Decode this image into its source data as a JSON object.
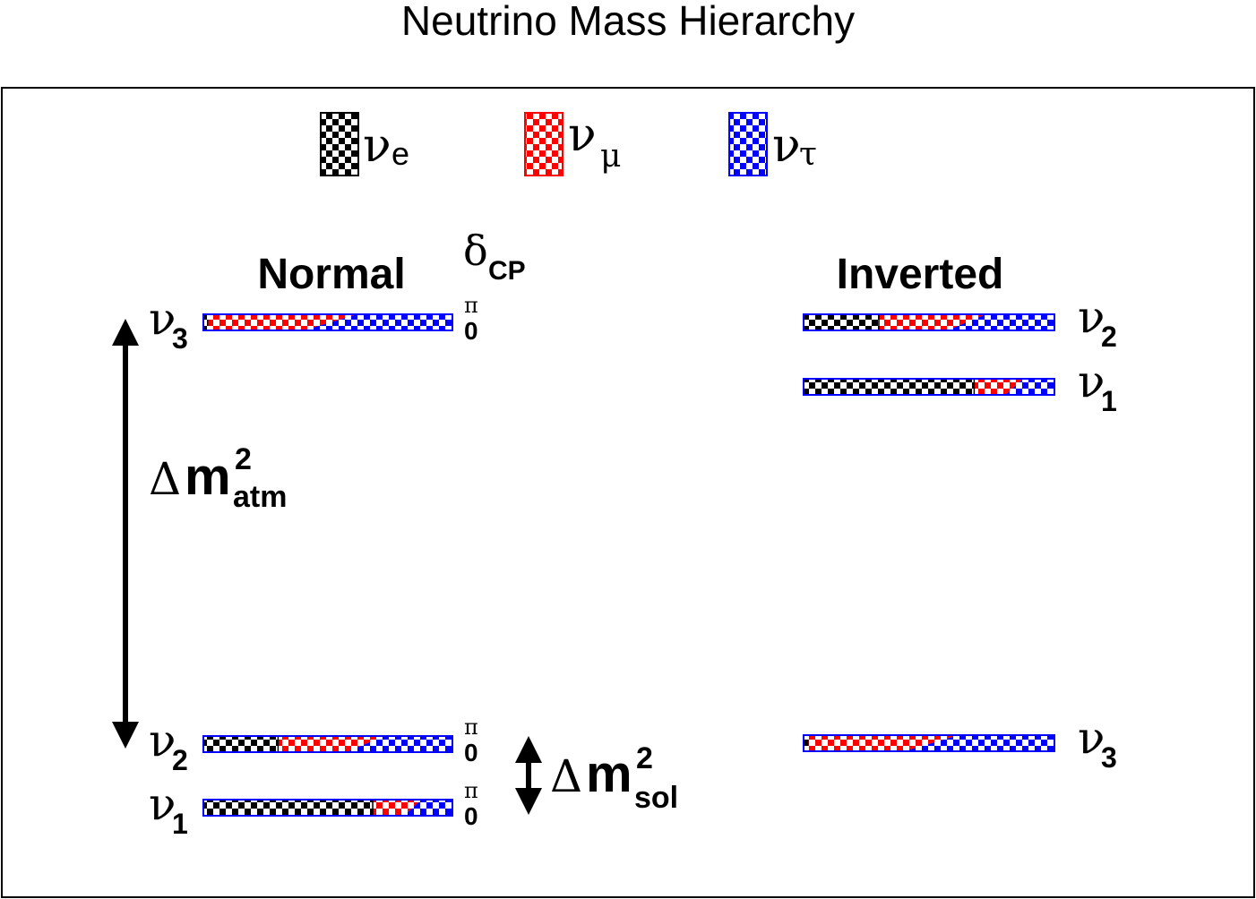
{
  "title": "Neutrino Mass Hierarchy",
  "colors": {
    "nu_e": "#000000",
    "nu_mu": "#ff0000",
    "nu_tau": "#0000ff"
  },
  "legend": [
    {
      "id": "nu_e",
      "greek": "ν",
      "sub": "e"
    },
    {
      "id": "nu_mu",
      "greek": "ν",
      "sub": "μ"
    },
    {
      "id": "nu_tau",
      "greek": "ν",
      "sub": "τ"
    }
  ],
  "delta_cp": {
    "symbol": "δ",
    "sub": "CP",
    "top_label": "π",
    "bottom_label": "0"
  },
  "normal": {
    "label": "Normal",
    "levels": [
      {
        "name": "ν",
        "sub": "3",
        "flavor": {
          "nu_e": 0.02,
          "nu_mu": 0.49,
          "nu_tau": 0.49
        }
      },
      {
        "name": "ν",
        "sub": "2",
        "flavor": {
          "nu_e": 0.3,
          "nu_mu": 0.35,
          "nu_tau": 0.35
        }
      },
      {
        "name": "ν",
        "sub": "1",
        "flavor": {
          "nu_e": 0.68,
          "nu_mu": 0.16,
          "nu_tau": 0.16
        }
      }
    ]
  },
  "inverted": {
    "label": "Inverted",
    "levels": [
      {
        "name": "ν",
        "sub": "2",
        "flavor": {
          "nu_e": 0.3,
          "nu_mu": 0.35,
          "nu_tau": 0.35
        }
      },
      {
        "name": "ν",
        "sub": "1",
        "flavor": {
          "nu_e": 0.68,
          "nu_mu": 0.16,
          "nu_tau": 0.16
        }
      },
      {
        "name": "ν",
        "sub": "3",
        "flavor": {
          "nu_e": 0.02,
          "nu_mu": 0.49,
          "nu_tau": 0.49
        }
      }
    ]
  },
  "splittings": {
    "atm": {
      "delta": "Δ",
      "m": "m",
      "sup": "2",
      "sub": "atm"
    },
    "sol": {
      "delta": "Δ",
      "m": "m",
      "sup": "2",
      "sub": "sol"
    }
  }
}
